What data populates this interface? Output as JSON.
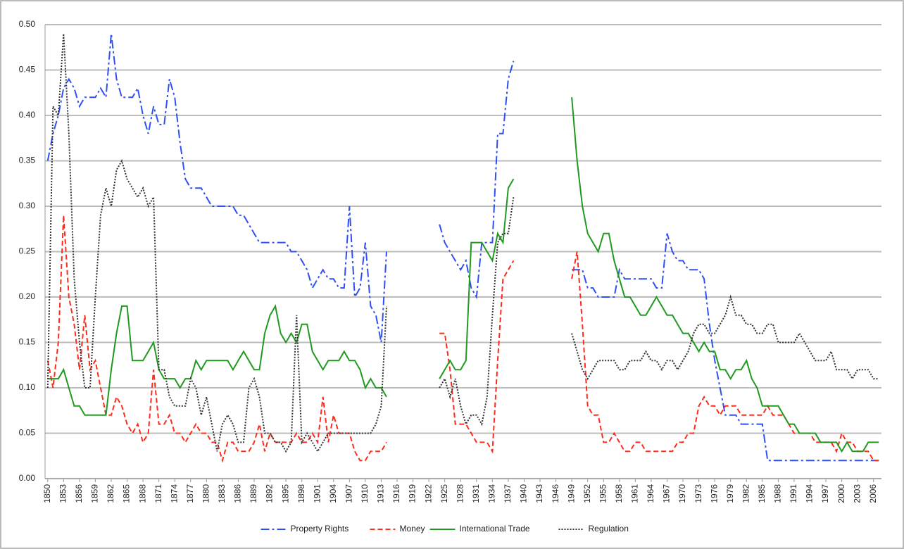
{
  "chart_data": {
    "type": "line",
    "x": [
      1850,
      1851,
      1852,
      1853,
      1854,
      1855,
      1856,
      1857,
      1858,
      1859,
      1860,
      1861,
      1862,
      1863,
      1864,
      1865,
      1866,
      1867,
      1868,
      1869,
      1870,
      1871,
      1872,
      1873,
      1874,
      1875,
      1876,
      1877,
      1878,
      1879,
      1880,
      1881,
      1882,
      1883,
      1884,
      1885,
      1886,
      1887,
      1888,
      1889,
      1890,
      1891,
      1892,
      1893,
      1894,
      1895,
      1896,
      1897,
      1898,
      1899,
      1900,
      1901,
      1902,
      1903,
      1904,
      1905,
      1906,
      1907,
      1908,
      1909,
      1910,
      1911,
      1912,
      1913,
      1914,
      1915,
      1916,
      1917,
      1918,
      1919,
      1920,
      1921,
      1922,
      1923,
      1924,
      1925,
      1926,
      1927,
      1928,
      1929,
      1930,
      1931,
      1932,
      1933,
      1934,
      1935,
      1936,
      1937,
      1938,
      1939,
      1940,
      1941,
      1942,
      1943,
      1944,
      1945,
      1946,
      1947,
      1948,
      1949,
      1950,
      1951,
      1952,
      1953,
      1954,
      1955,
      1956,
      1957,
      1958,
      1959,
      1960,
      1961,
      1962,
      1963,
      1964,
      1965,
      1966,
      1967,
      1968,
      1969,
      1970,
      1971,
      1972,
      1973,
      1974,
      1975,
      1976,
      1977,
      1978,
      1979,
      1980,
      1981,
      1982,
      1983,
      1984,
      1985,
      1986,
      1987,
      1988,
      1989,
      1990,
      1991,
      1992,
      1993,
      1994,
      1995,
      1996,
      1997,
      1998,
      1999,
      2000,
      2001,
      2002,
      2003,
      2004,
      2005,
      2006,
      2007
    ],
    "series": [
      {
        "name": "Property Rights",
        "color": "#2f4ff5",
        "linestyle": "dashdot",
        "values": [
          0.35,
          0.38,
          0.4,
          0.43,
          0.44,
          0.43,
          0.41,
          0.42,
          0.42,
          0.42,
          0.43,
          0.42,
          0.49,
          0.44,
          0.42,
          0.42,
          0.42,
          0.43,
          0.4,
          0.38,
          0.41,
          0.39,
          0.39,
          0.44,
          0.42,
          0.37,
          0.33,
          0.32,
          0.32,
          0.32,
          0.31,
          0.3,
          0.3,
          0.3,
          0.3,
          0.3,
          0.29,
          0.29,
          0.28,
          0.27,
          0.26,
          0.26,
          0.26,
          0.26,
          0.26,
          0.26,
          0.25,
          0.25,
          0.24,
          0.23,
          0.21,
          0.22,
          0.23,
          0.22,
          0.22,
          0.21,
          0.21,
          0.3,
          0.2,
          0.21,
          0.26,
          0.19,
          0.18,
          0.15,
          0.25,
          null,
          null,
          null,
          null,
          null,
          null,
          null,
          null,
          null,
          0.28,
          0.26,
          0.25,
          0.24,
          0.23,
          0.24,
          0.21,
          0.2,
          0.26,
          0.26,
          0.26,
          0.38,
          0.38,
          0.44,
          0.46,
          null,
          null,
          null,
          null,
          null,
          null,
          null,
          null,
          null,
          null,
          0.23,
          0.23,
          0.23,
          0.21,
          0.21,
          0.2,
          0.2,
          0.2,
          0.2,
          0.23,
          0.22,
          0.22,
          0.22,
          0.22,
          0.22,
          0.22,
          0.21,
          0.21,
          0.27,
          0.25,
          0.24,
          0.24,
          0.23,
          0.23,
          0.23,
          0.22,
          0.17,
          0.13,
          0.1,
          0.07,
          0.07,
          0.07,
          0.06,
          0.06,
          0.06,
          0.06,
          0.06,
          0.02,
          0.02,
          0.02,
          0.02,
          0.02,
          0.02,
          0.02,
          0.02,
          0.02,
          0.02,
          0.02,
          0.02,
          0.02,
          0.02,
          0.02,
          0.02,
          0.02,
          0.02,
          0.02,
          0.02,
          0.02,
          0.02
        ]
      },
      {
        "name": "Money",
        "color": "#ff2a1a",
        "linestyle": "dashed",
        "values": [
          0.13,
          0.1,
          0.15,
          0.29,
          0.2,
          0.17,
          0.12,
          0.18,
          0.12,
          0.13,
          0.1,
          0.07,
          0.07,
          0.09,
          0.08,
          0.06,
          0.05,
          0.06,
          0.04,
          0.05,
          0.12,
          0.06,
          0.06,
          0.07,
          0.05,
          0.05,
          0.04,
          0.05,
          0.06,
          0.05,
          0.05,
          0.04,
          0.04,
          0.02,
          0.04,
          0.04,
          0.03,
          0.03,
          0.03,
          0.04,
          0.06,
          0.03,
          0.05,
          0.04,
          0.04,
          0.04,
          0.04,
          0.05,
          0.04,
          0.04,
          0.05,
          0.04,
          0.09,
          0.04,
          0.07,
          0.05,
          0.05,
          0.05,
          0.03,
          0.02,
          0.02,
          0.03,
          0.03,
          0.03,
          0.04,
          null,
          null,
          null,
          null,
          null,
          null,
          null,
          null,
          null,
          0.16,
          0.16,
          0.12,
          0.06,
          0.06,
          0.06,
          0.05,
          0.04,
          0.04,
          0.04,
          0.03,
          0.13,
          0.22,
          0.23,
          0.24,
          null,
          null,
          null,
          null,
          null,
          null,
          null,
          null,
          null,
          null,
          0.22,
          0.25,
          0.17,
          0.08,
          0.07,
          0.07,
          0.04,
          0.04,
          0.05,
          0.04,
          0.03,
          0.03,
          0.04,
          0.04,
          0.03,
          0.03,
          0.03,
          0.03,
          0.03,
          0.03,
          0.04,
          0.04,
          0.05,
          0.05,
          0.08,
          0.09,
          0.08,
          0.08,
          0.07,
          0.08,
          0.08,
          0.08,
          0.07,
          0.07,
          0.07,
          0.07,
          0.07,
          0.08,
          0.07,
          0.07,
          0.07,
          0.06,
          0.05,
          0.05,
          0.05,
          0.05,
          0.04,
          0.04,
          0.04,
          0.04,
          0.03,
          0.05,
          0.04,
          0.04,
          0.03,
          0.03,
          0.03,
          0.02,
          0.02
        ]
      },
      {
        "name": "International Trade",
        "color": "#1f9a1f",
        "linestyle": "solid",
        "values": [
          0.11,
          0.11,
          0.11,
          0.12,
          0.1,
          0.08,
          0.08,
          0.07,
          0.07,
          0.07,
          0.07,
          0.07,
          0.12,
          0.16,
          0.19,
          0.19,
          0.13,
          0.13,
          0.13,
          0.14,
          0.15,
          0.12,
          0.11,
          0.11,
          0.11,
          0.1,
          0.11,
          0.11,
          0.13,
          0.12,
          0.13,
          0.13,
          0.13,
          0.13,
          0.13,
          0.12,
          0.13,
          0.14,
          0.13,
          0.12,
          0.12,
          0.16,
          0.18,
          0.19,
          0.16,
          0.15,
          0.16,
          0.15,
          0.17,
          0.17,
          0.14,
          0.13,
          0.12,
          0.13,
          0.13,
          0.13,
          0.14,
          0.13,
          0.13,
          0.12,
          0.1,
          0.11,
          0.1,
          0.1,
          0.09,
          null,
          null,
          null,
          null,
          null,
          null,
          null,
          null,
          null,
          0.11,
          0.12,
          0.13,
          0.12,
          0.12,
          0.13,
          0.26,
          0.26,
          0.26,
          0.25,
          0.24,
          0.27,
          0.26,
          0.32,
          0.33,
          null,
          null,
          null,
          null,
          null,
          null,
          null,
          null,
          null,
          null,
          0.42,
          0.35,
          0.3,
          0.27,
          0.26,
          0.25,
          0.27,
          0.27,
          0.24,
          0.22,
          0.2,
          0.2,
          0.19,
          0.18,
          0.18,
          0.19,
          0.2,
          0.19,
          0.18,
          0.18,
          0.17,
          0.16,
          0.16,
          0.15,
          0.14,
          0.15,
          0.14,
          0.14,
          0.12,
          0.12,
          0.11,
          0.12,
          0.12,
          0.13,
          0.11,
          0.1,
          0.08,
          0.08,
          0.08,
          0.08,
          0.07,
          0.06,
          0.06,
          0.05,
          0.05,
          0.05,
          0.05,
          0.04,
          0.04,
          0.04,
          0.04,
          0.03,
          0.04,
          0.03,
          0.03,
          0.03,
          0.04,
          0.04,
          0.04
        ]
      },
      {
        "name": "Regulation",
        "color": "#333333",
        "linestyle": "dotted",
        "values": [
          0.1,
          0.41,
          0.4,
          0.49,
          0.38,
          0.22,
          0.15,
          0.1,
          0.1,
          0.2,
          0.29,
          0.32,
          0.3,
          0.34,
          0.35,
          0.33,
          0.32,
          0.31,
          0.32,
          0.3,
          0.31,
          0.12,
          0.12,
          0.09,
          0.08,
          0.08,
          0.08,
          0.11,
          0.1,
          0.07,
          0.09,
          0.06,
          0.03,
          0.06,
          0.07,
          0.06,
          0.04,
          0.04,
          0.1,
          0.11,
          0.09,
          0.05,
          0.05,
          0.04,
          0.04,
          0.03,
          0.04,
          0.18,
          0.04,
          0.05,
          0.04,
          0.03,
          0.04,
          0.05,
          0.05,
          0.05,
          0.05,
          0.05,
          0.05,
          0.05,
          0.05,
          0.05,
          0.06,
          0.08,
          0.19,
          null,
          null,
          null,
          null,
          null,
          null,
          null,
          null,
          null,
          0.1,
          0.11,
          0.09,
          0.11,
          0.08,
          0.06,
          0.07,
          0.07,
          0.06,
          0.09,
          0.18,
          0.26,
          0.27,
          0.27,
          0.31,
          null,
          null,
          null,
          null,
          null,
          null,
          null,
          null,
          null,
          null,
          0.16,
          0.14,
          0.12,
          0.11,
          0.12,
          0.13,
          0.13,
          0.13,
          0.13,
          0.12,
          0.12,
          0.13,
          0.13,
          0.13,
          0.14,
          0.13,
          0.13,
          0.12,
          0.13,
          0.13,
          0.12,
          0.13,
          0.14,
          0.16,
          0.17,
          0.17,
          0.16,
          0.16,
          0.17,
          0.18,
          0.2,
          0.18,
          0.18,
          0.17,
          0.17,
          0.16,
          0.16,
          0.17,
          0.17,
          0.15,
          0.15,
          0.15,
          0.15,
          0.16,
          0.15,
          0.14,
          0.13,
          0.13,
          0.13,
          0.14,
          0.12,
          0.12,
          0.12,
          0.11,
          0.12,
          0.12,
          0.12,
          0.11,
          0.11
        ]
      }
    ],
    "xlim": [
      1849.5,
      2007.5
    ],
    "xticks": [
      1850,
      1853,
      1856,
      1859,
      1862,
      1865,
      1868,
      1871,
      1874,
      1877,
      1880,
      1883,
      1886,
      1889,
      1892,
      1895,
      1898,
      1901,
      1904,
      1907,
      1910,
      1913,
      1916,
      1919,
      1922,
      1925,
      1928,
      1931,
      1934,
      1937,
      1940,
      1943,
      1946,
      1949,
      1952,
      1955,
      1958,
      1961,
      1964,
      1967,
      1970,
      1973,
      1976,
      1979,
      1982,
      1985,
      1988,
      1991,
      1994,
      1997,
      2000,
      2003,
      2006
    ],
    "ylim": [
      0,
      0.5
    ],
    "yticks": [
      {
        "value": 0,
        "label": "0.00"
      },
      {
        "value": 0.05,
        "label": "0.05"
      },
      {
        "value": 0.1,
        "label": "0.10"
      },
      {
        "value": 0.15,
        "label": "0.15"
      },
      {
        "value": 0.2,
        "label": "0.20"
      },
      {
        "value": 0.25,
        "label": "0.25"
      },
      {
        "value": 0.3,
        "label": "0.30"
      },
      {
        "value": 0.35,
        "label": "0.35"
      },
      {
        "value": 0.4,
        "label": "0.40"
      },
      {
        "value": 0.45,
        "label": "0.45"
      },
      {
        "value": 0.5,
        "label": "0.50"
      }
    ],
    "grid": true,
    "legend": "bottom"
  }
}
